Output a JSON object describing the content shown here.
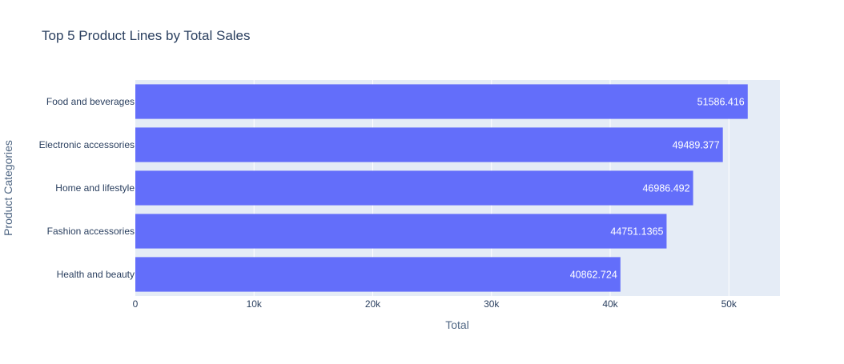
{
  "chart_data": {
    "type": "bar",
    "orientation": "horizontal",
    "title": "Top 5 Product Lines by Total Sales",
    "xlabel": "Total",
    "ylabel": "Product Categories",
    "categories": [
      "Food and beverages",
      "Electronic accessories",
      "Home and lifestyle",
      "Fashion accessories",
      "Health and beauty"
    ],
    "values": [
      51586.416,
      49489.377,
      46986.492,
      44751.1365,
      40862.724
    ],
    "value_labels": [
      "51586.416",
      "49489.377",
      "46986.492",
      "44751.1365",
      "40862.724"
    ],
    "xlim": [
      0,
      54300
    ],
    "xticks": [
      0,
      10000,
      20000,
      30000,
      40000,
      50000
    ],
    "xtick_labels": [
      "0",
      "10k",
      "20k",
      "30k",
      "40k",
      "50k"
    ],
    "grid": true,
    "colors": {
      "bar": "#636efa",
      "plot_bg": "#e5ecf6",
      "grid": "#ffffff",
      "text": "#2a3f5f"
    }
  }
}
